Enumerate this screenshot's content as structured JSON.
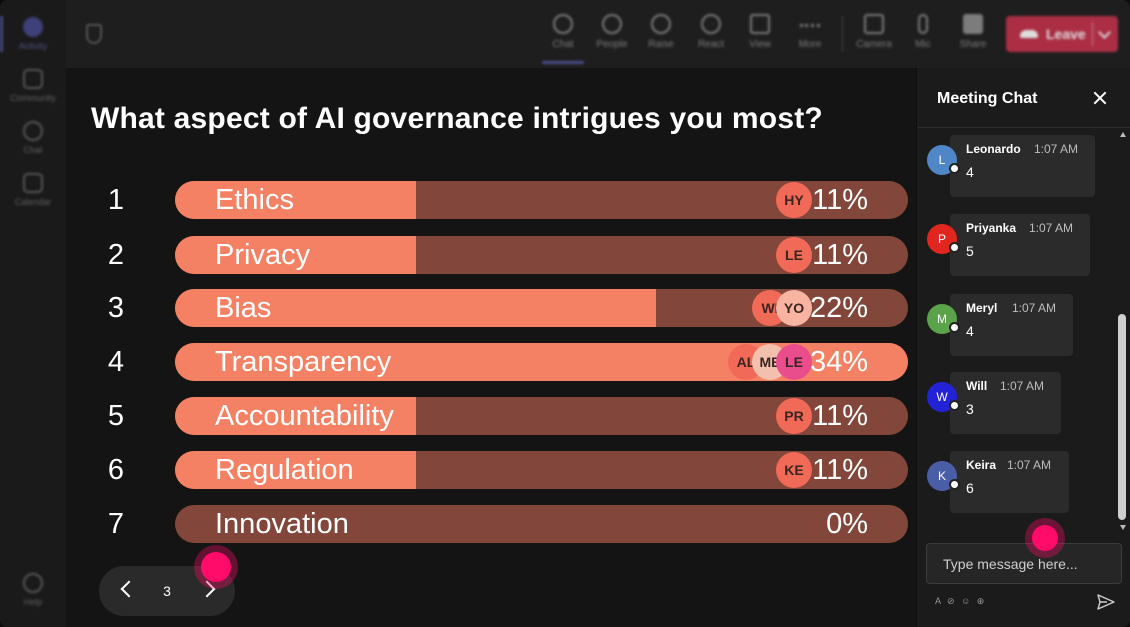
{
  "rail": {
    "items": [
      {
        "label": "Activity",
        "active": true
      },
      {
        "label": "Community",
        "active": false
      },
      {
        "label": "Chat",
        "active": false
      },
      {
        "label": "Calendar",
        "active": false
      }
    ],
    "help_label": "Help"
  },
  "toolbar": {
    "buttons": [
      {
        "label": "Chat",
        "icon": "chat-icon",
        "active": true
      },
      {
        "label": "People",
        "icon": "people-icon",
        "active": false
      },
      {
        "label": "Raise",
        "icon": "hand-icon",
        "active": false
      },
      {
        "label": "React",
        "icon": "emoji-icon",
        "active": false
      },
      {
        "label": "View",
        "icon": "grid-icon",
        "active": false
      },
      {
        "label": "More",
        "icon": "more-icon",
        "active": false
      },
      {
        "label": "Camera",
        "icon": "camera-icon",
        "active": false
      },
      {
        "label": "Mic",
        "icon": "mic-icon",
        "active": false
      },
      {
        "label": "Share",
        "icon": "share-icon",
        "active": false
      }
    ],
    "leave_label": "Leave"
  },
  "poll": {
    "question": "What aspect of AI governance intrigues you most?",
    "options": [
      {
        "rank": "1",
        "label": "Ethics",
        "percent": 11,
        "percent_text": "11%",
        "voters": [
          "HY"
        ]
      },
      {
        "rank": "2",
        "label": "Privacy",
        "percent": 11,
        "percent_text": "11%",
        "voters": [
          "LE"
        ]
      },
      {
        "rank": "3",
        "label": "Bias",
        "percent": 22,
        "percent_text": "22%",
        "voters": [
          "WI",
          "YO"
        ]
      },
      {
        "rank": "4",
        "label": "Transparency",
        "percent": 34,
        "percent_text": "34%",
        "voters": [
          "AL",
          "ME",
          "LE"
        ]
      },
      {
        "rank": "5",
        "label": "Accountability",
        "percent": 11,
        "percent_text": "11%",
        "voters": [
          "PR"
        ]
      },
      {
        "rank": "6",
        "label": "Regulation",
        "percent": 11,
        "percent_text": "11%",
        "voters": [
          "KE"
        ]
      },
      {
        "rank": "7",
        "label": "Innovation",
        "percent": 0,
        "percent_text": "0%",
        "voters": []
      }
    ],
    "page": "3"
  },
  "chat": {
    "title": "Meeting Chat",
    "messages": [
      {
        "initial": "L",
        "sender": "Leonardo",
        "time": "1:07 AM",
        "text": "4",
        "color": "#4f86c6"
      },
      {
        "initial": "P",
        "sender": "Priyanka",
        "time": "1:07 AM",
        "text": "5",
        "color": "#e0261e"
      },
      {
        "initial": "M",
        "sender": "Meryl",
        "time": "1:07 AM",
        "text": "4",
        "color": "#5ba34a"
      },
      {
        "initial": "W",
        "sender": "Will",
        "time": "1:07 AM",
        "text": "3",
        "color": "#2323d6"
      },
      {
        "initial": "K",
        "sender": "Keira",
        "time": "1:07 AM",
        "text": "6",
        "color": "#4a5ea8"
      }
    ],
    "input_placeholder": "Type message here...",
    "format_tools": "A ⊘ ☺ ⊕"
  },
  "colors": {
    "bar_fill": "#f58164",
    "bar_track": "#83463a",
    "cursor": "#ff0b6a",
    "leave": "#c4314b",
    "accent": "#6b6fd8"
  }
}
